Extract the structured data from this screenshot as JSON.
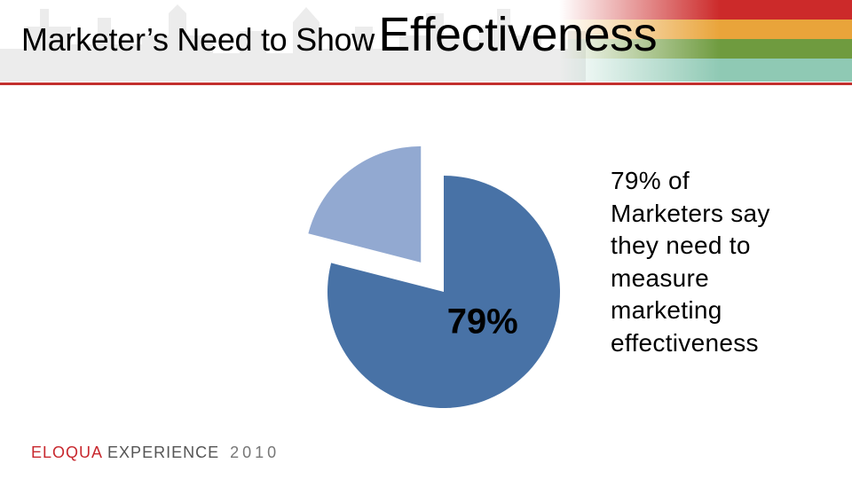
{
  "slide": {
    "title_part1": "Marketer’s Need to Show",
    "title_part2": "Effectiveness",
    "description_lines": [
      "79% of",
      "Marketers say",
      "they need to",
      "measure",
      "marketing",
      "effectiveness"
    ],
    "footer_brand": "ELOQUA",
    "footer_event": "EXPERIENCE",
    "footer_year": "2010"
  },
  "colors": {
    "accent_rule": "#c3302e",
    "stripe_red": "#cc2a2a",
    "stripe_orange": "#e9a43a",
    "stripe_green": "#6f9b3f",
    "stripe_teal": "#8fc9b4",
    "slice_main": "#4872a6",
    "slice_other": "#92a9d1"
  },
  "chart_data": {
    "type": "pie",
    "slices": [
      {
        "value": 79,
        "label": "79%",
        "color": "#4872a6",
        "exploded": false
      },
      {
        "value": 21,
        "label": "",
        "color": "#92a9d1",
        "exploded": true
      }
    ]
  }
}
